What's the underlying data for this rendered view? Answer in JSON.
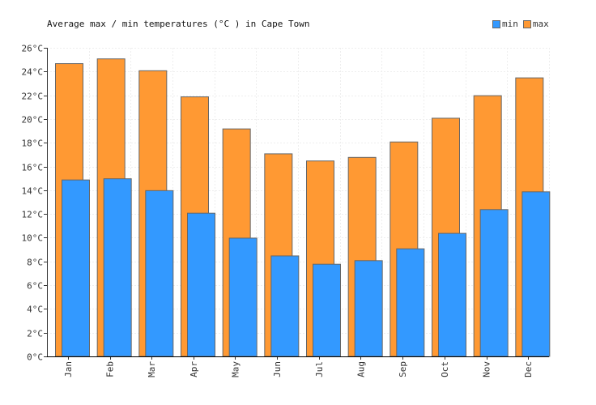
{
  "chart_data": {
    "type": "bar",
    "title": "Average max / min temperatures (°C ) in Cape Town",
    "categories": [
      "Jan",
      "Feb",
      "Mar",
      "Apr",
      "May",
      "Jun",
      "Jul",
      "Aug",
      "Sep",
      "Oct",
      "Nov",
      "Dec"
    ],
    "series": [
      {
        "name": "max",
        "color": "#ff9933",
        "values": [
          24.7,
          25.1,
          24.1,
          21.9,
          19.2,
          17.1,
          16.5,
          16.8,
          18.1,
          20.1,
          22.0,
          23.5
        ]
      },
      {
        "name": "min",
        "color": "#3399ff",
        "values": [
          14.9,
          15.0,
          14.0,
          12.1,
          10.0,
          8.5,
          7.8,
          8.1,
          9.1,
          10.4,
          12.4,
          13.9
        ]
      }
    ],
    "ylim": [
      0,
      26
    ],
    "yticks": [
      0,
      2,
      4,
      6,
      8,
      10,
      12,
      14,
      16,
      18,
      20,
      22,
      24,
      26
    ],
    "ytick_suffix": "°C",
    "grid": true,
    "legend": {
      "position": "top-right",
      "order": [
        "min",
        "max"
      ]
    }
  }
}
